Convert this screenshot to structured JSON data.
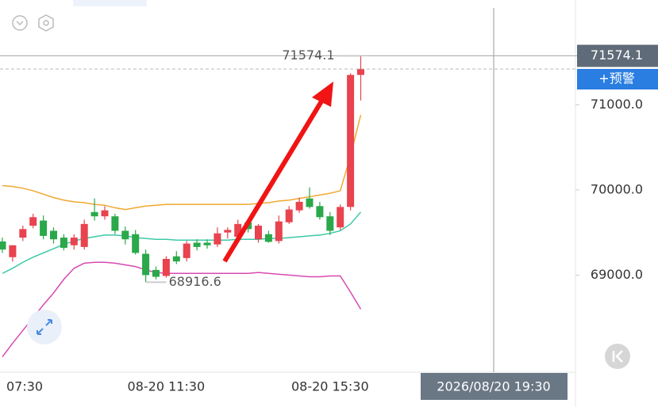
{
  "chart_data": {
    "type": "candlestick",
    "categories": [
      "07:30",
      null,
      null,
      null,
      null,
      null,
      null,
      null,
      null,
      null,
      null,
      null,
      null,
      null,
      null,
      null,
      "08-20 11:30",
      null,
      null,
      null,
      null,
      null,
      null,
      null,
      null,
      null,
      null,
      null,
      null,
      null,
      null,
      null,
      "08-20 15:30",
      null,
      null,
      null
    ],
    "candles": {
      "open": [
        69395,
        69210,
        69440,
        69580,
        69640,
        69520,
        69440,
        69350,
        69330,
        69740,
        69690,
        69690,
        69520,
        69480,
        69250,
        69060,
        68990,
        69220,
        69200,
        69380,
        69380,
        69360,
        69500,
        69450,
        69620,
        69420,
        69480,
        69400,
        69620,
        69760,
        69900,
        69810,
        69690,
        69560,
        69800,
        71350
      ],
      "high": [
        69440,
        69350,
        69580,
        69720,
        69700,
        69560,
        69480,
        69480,
        69650,
        69900,
        69810,
        69720,
        69570,
        69530,
        69300,
        69100,
        69220,
        69280,
        69400,
        69420,
        69420,
        69560,
        69560,
        69650,
        69660,
        69600,
        69520,
        69700,
        69810,
        69910,
        70030,
        69860,
        69740,
        69830,
        71370,
        71574.1
      ],
      "low": [
        69260,
        69160,
        69400,
        69550,
        69420,
        69370,
        69290,
        69300,
        69300,
        69640,
        69650,
        69480,
        69360,
        69240,
        68916.6,
        68950,
        68970,
        69130,
        69160,
        69290,
        69310,
        69330,
        69430,
        69420,
        69500,
        69380,
        69380,
        69370,
        69600,
        69730,
        69780,
        69650,
        69470,
        69530,
        69760,
        71050
      ],
      "close": [
        69300,
        69350,
        69540,
        69680,
        69460,
        69420,
        69320,
        69440,
        69600,
        69690,
        69760,
        69520,
        69420,
        69260,
        69000,
        68980,
        69190,
        69160,
        69370,
        69330,
        69350,
        69490,
        69530,
        69600,
        69540,
        69580,
        69390,
        69630,
        69770,
        69860,
        69800,
        69680,
        69520,
        69800,
        71350,
        71420
      ]
    },
    "up_color": "#e8434e",
    "down_color": "#2aa84a",
    "series": [
      {
        "color": "#f0a830",
        "values": [
          70050,
          70040,
          70020,
          69990,
          69950,
          69910,
          69880,
          69860,
          69850,
          69830,
          69820,
          69790,
          69770,
          69790,
          69810,
          69820,
          69830,
          69830,
          69830,
          69830,
          69830,
          69830,
          69830,
          69830,
          69830,
          69840,
          69850,
          69870,
          69880,
          69900,
          69920,
          69940,
          69960,
          69990,
          70400,
          70880
        ]
      },
      {
        "color": "#3cc8a8",
        "values": [
          69020,
          69080,
          69150,
          69210,
          69260,
          69310,
          69360,
          69400,
          69430,
          69450,
          69470,
          69470,
          69460,
          69440,
          69430,
          69420,
          69420,
          69410,
          69410,
          69410,
          69410,
          69410,
          69410,
          69420,
          69420,
          69420,
          69430,
          69430,
          69440,
          69450,
          69460,
          69470,
          69490,
          69520,
          69600,
          69740
        ]
      },
      {
        "color": "#d84ab0",
        "values": [
          68040,
          68200,
          68350,
          68500,
          68650,
          68790,
          68950,
          69080,
          69140,
          69150,
          69150,
          69140,
          69120,
          69100,
          69060,
          69030,
          69020,
          69020,
          69020,
          69020,
          69020,
          69020,
          69020,
          69020,
          69020,
          69030,
          69020,
          69010,
          69000,
          68990,
          68980,
          68980,
          68990,
          68990,
          68800,
          68600
        ]
      }
    ],
    "ylim": [
      67860,
      72230
    ],
    "yticks": [
      {
        "value": 71000,
        "label": "71000.0"
      },
      {
        "value": 70000,
        "label": "70000.0"
      },
      {
        "value": 69000,
        "label": "69000.0"
      }
    ],
    "crosshair_label": "2026/08/20 19:30",
    "alert_button": "+预警"
  }
}
